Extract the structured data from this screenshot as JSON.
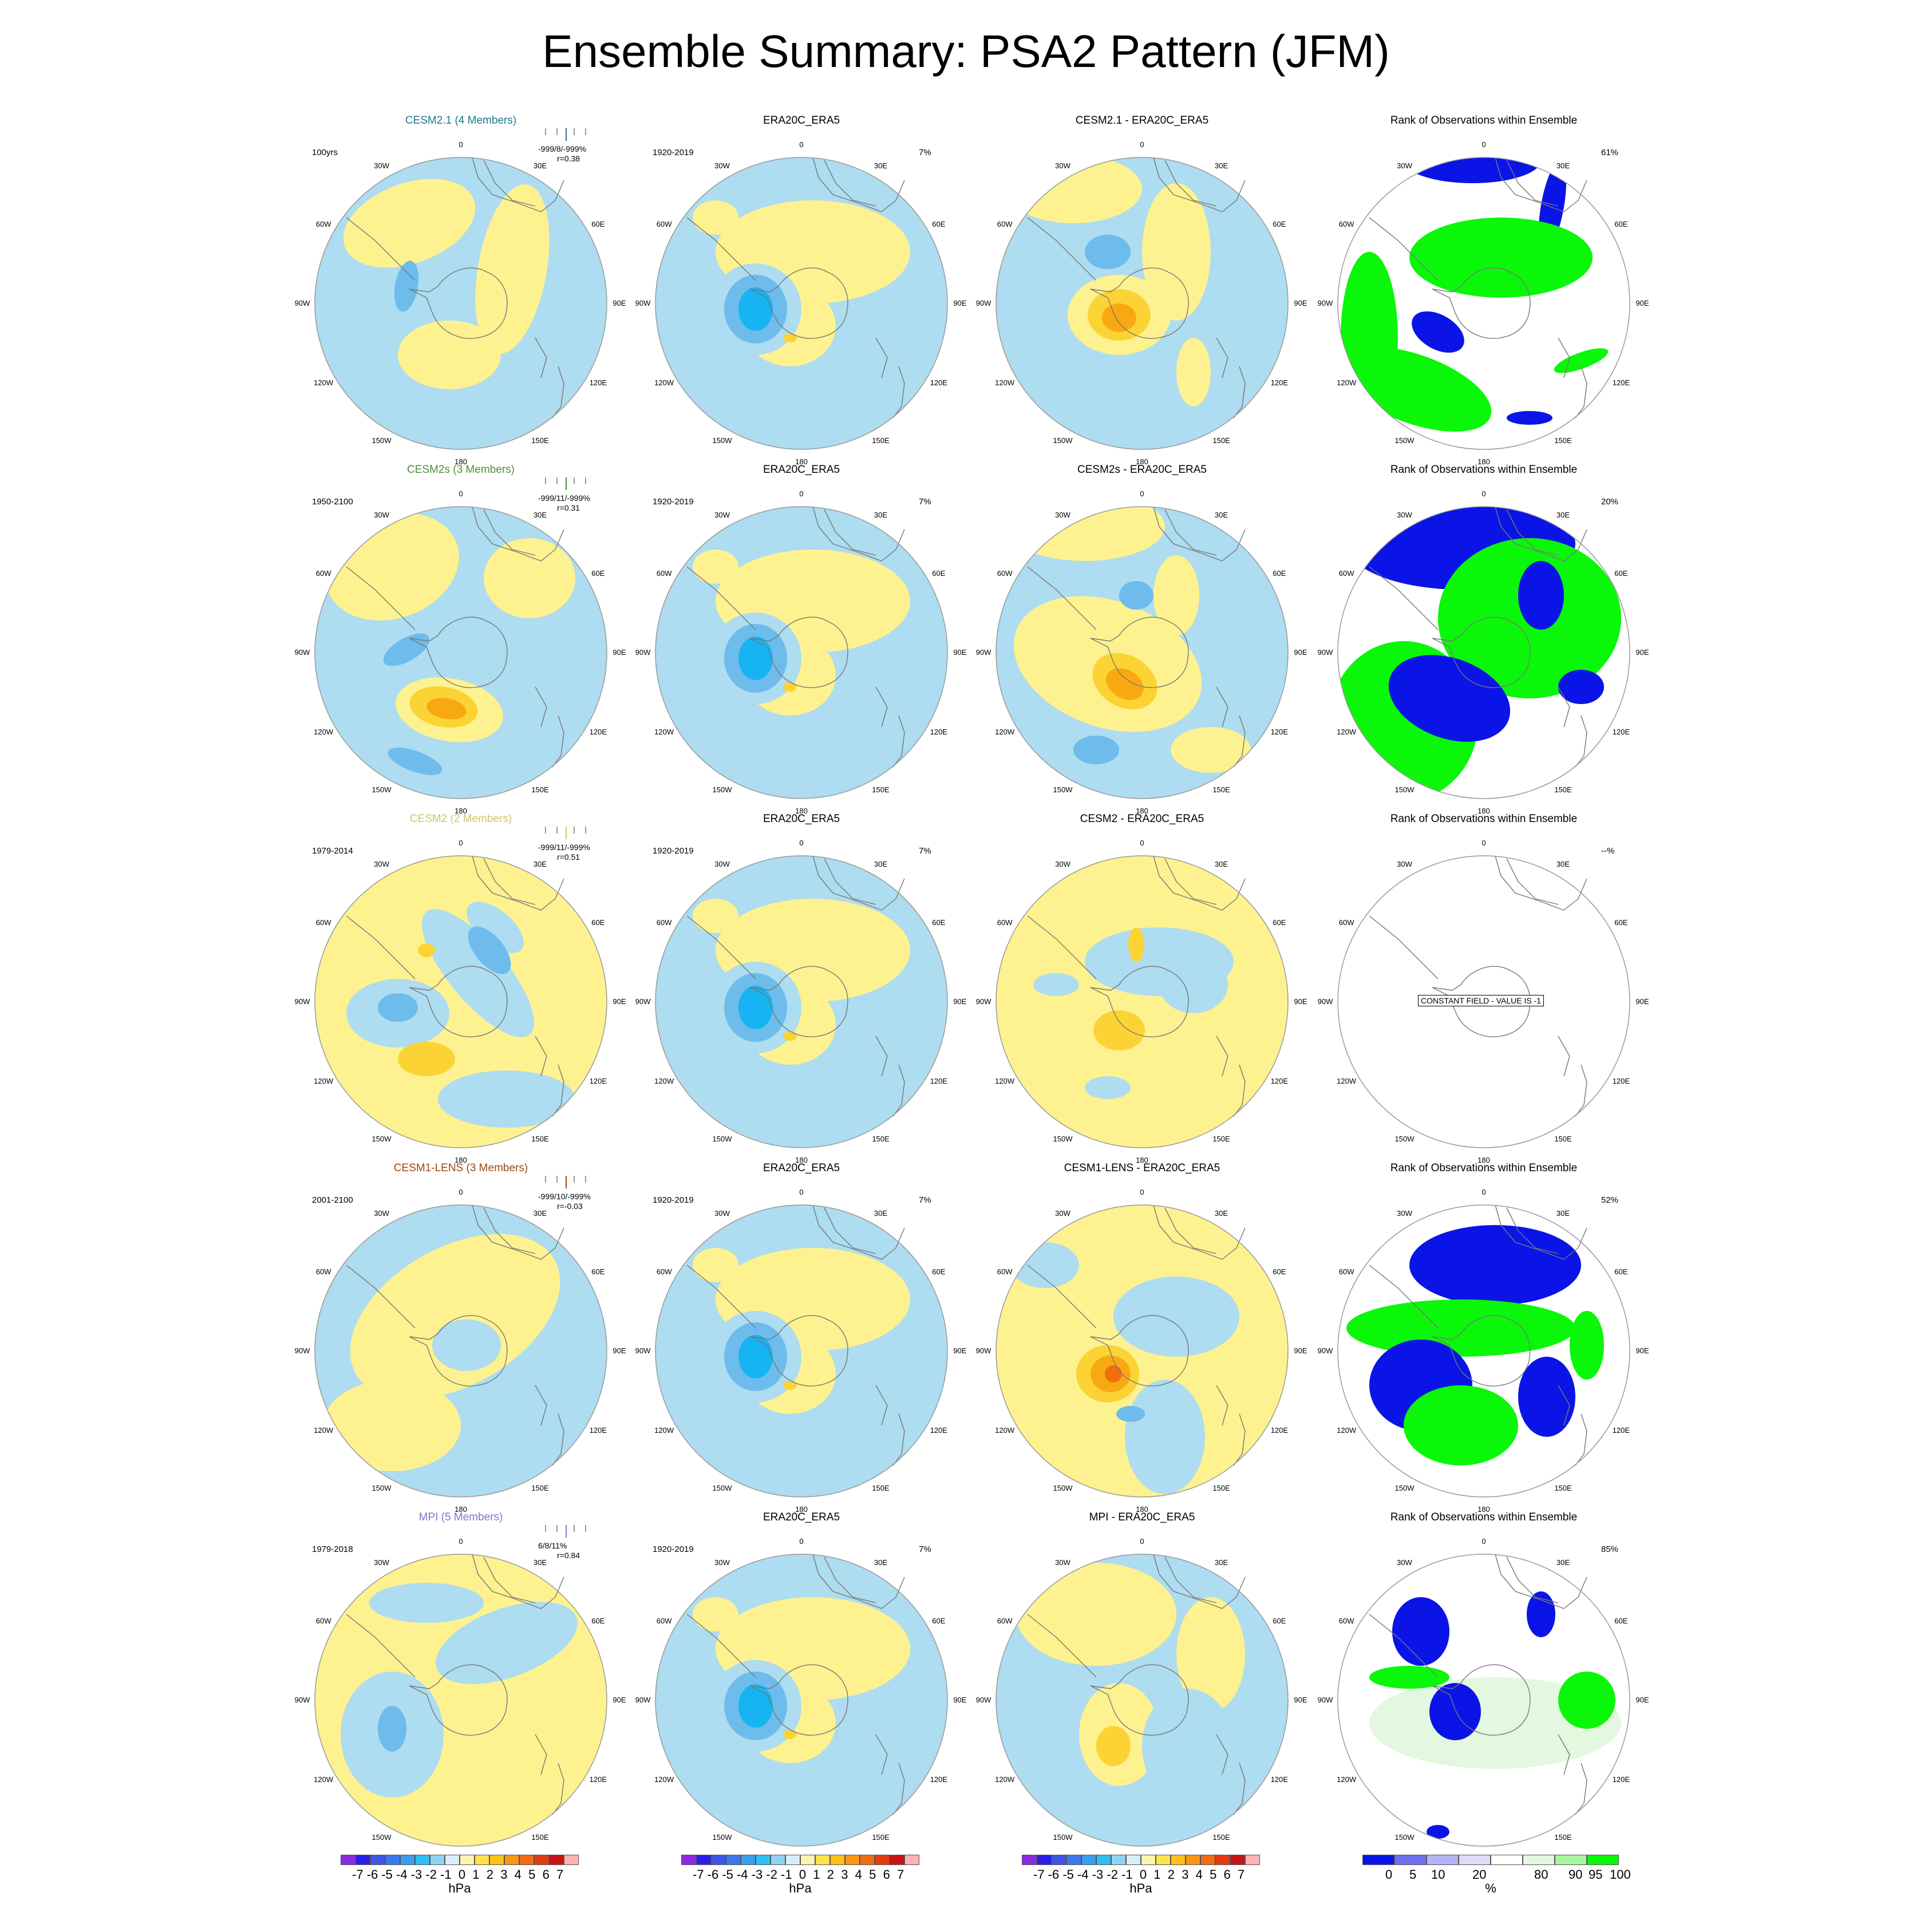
{
  "title": "Ensemble Summary: PSA2 Pattern (JFM)",
  "colors": {
    "yellow": "#fdf28f",
    "lightblue": "#aedcf0",
    "midblue": "#6dbcec",
    "deepblue": "#16b4f2",
    "orange_light": "#fcd334",
    "orange_mid": "#f8a912",
    "orange_deep": "#f36d0f",
    "rank_blue": "#0a14e6",
    "rank_green": "#0af70a",
    "rank_pale": "#e3f8de"
  },
  "longitude_labels": [
    "0",
    "30E",
    "60E",
    "90E",
    "120E",
    "150E",
    "180",
    "150W",
    "120W",
    "90W",
    "60W",
    "30W"
  ],
  "rows": [
    {
      "model_title": "CESM2.1 (4 Members)",
      "model_color": "#1d7a8c",
      "years": "100yrs",
      "stats_line1": "-999/8/-999%",
      "stats_line2": "r=0.38",
      "obs_title": "ERA20C_ERA5",
      "obs_years": "1920-2019",
      "obs_pct": "7%",
      "diff_title": "CESM2.1 - ERA20C_ERA5",
      "rank_title": "Rank of Observations within Ensemble",
      "rank_pct": "61%"
    },
    {
      "model_title": "CESM2s (3 Members)",
      "model_color": "#4f8f3a",
      "years": "1950-2100",
      "stats_line1": "-999/11/-999%",
      "stats_line2": "r=0.31",
      "obs_title": "ERA20C_ERA5",
      "obs_years": "1920-2019",
      "obs_pct": "7%",
      "diff_title": "CESM2s - ERA20C_ERA5",
      "rank_title": "Rank of Observations within Ensemble",
      "rank_pct": "20%"
    },
    {
      "model_title": "CESM2 (2 Members)",
      "model_color": "#c9c86a",
      "years": "1979-2014",
      "stats_line1": "-999/11/-999%",
      "stats_line2": "r=0.51",
      "obs_title": "ERA20C_ERA5",
      "obs_years": "1920-2019",
      "obs_pct": "7%",
      "diff_title": "CESM2 - ERA20C_ERA5",
      "rank_title": "Rank of Observations within Ensemble",
      "rank_pct": "--%",
      "rank_note": "CONSTANT FIELD - VALUE IS -1"
    },
    {
      "model_title": "CESM1-LENS (3 Members)",
      "model_color": "#9a4a12",
      "years": "2001-2100",
      "stats_line1": "-999/10/-999%",
      "stats_line2": "r=-0.03",
      "obs_title": "ERA20C_ERA5",
      "obs_years": "1920-2019",
      "obs_pct": "7%",
      "diff_title": "CESM1-LENS - ERA20C_ERA5",
      "rank_title": "Rank of Observations within Ensemble",
      "rank_pct": "52%"
    },
    {
      "model_title": "MPI (5 Members)",
      "model_color": "#8b6fd6",
      "years": "1979-2018",
      "stats_line1": "6/8/11%",
      "stats_line2": "r=0.84",
      "obs_title": "ERA20C_ERA5",
      "obs_years": "1920-2019",
      "obs_pct": "7%",
      "diff_title": "MPI - ERA20C_ERA5",
      "rank_title": "Rank of Observations within Ensemble",
      "rank_pct": "85%"
    }
  ],
  "hpa_colorbar": {
    "tick_labels": "-7 -6 -5 -4 -3 -2 -1  0  1  2  3  4  5  6  7",
    "unit": "hPa",
    "swatches": [
      "#8a2be2",
      "#2a1ee8",
      "#3e55e6",
      "#3d78ea",
      "#3b9eee",
      "#2fc0f2",
      "#8fd3f0",
      "#d8eef6",
      "#fdf4b0",
      "#fde34a",
      "#fcc21a",
      "#f8961a",
      "#f26b12",
      "#e43b12",
      "#c81414",
      "#ffb3b3"
    ]
  },
  "rank_colorbar": {
    "tick_labels": [
      "0",
      "5",
      "10",
      "20",
      "80",
      "90",
      "95",
      "100"
    ],
    "unit": "%",
    "swatches": [
      "#0a14e6",
      "#6e6ef0",
      "#b4b4f4",
      "#dcdcf8",
      "#ffffff",
      "#e3f8de",
      "#a8f5a0",
      "#0af70a"
    ]
  }
}
